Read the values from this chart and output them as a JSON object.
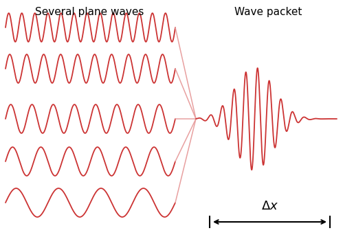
{
  "title_left": "Several plane waves",
  "title_right": "Wave packet",
  "wave_color": "#cc3333",
  "funnel_color": "#e8a0a0",
  "arrow_color": "#000000",
  "background_color": "#ffffff",
  "n_waves": 5,
  "wave_freqs_cycles": [
    13,
    10,
    8,
    6,
    4
  ],
  "wave_amplitude": 0.38,
  "figsize": [
    4.99,
    3.45
  ],
  "dpi": 100,
  "delta_x_label": "$\\Delta x$"
}
